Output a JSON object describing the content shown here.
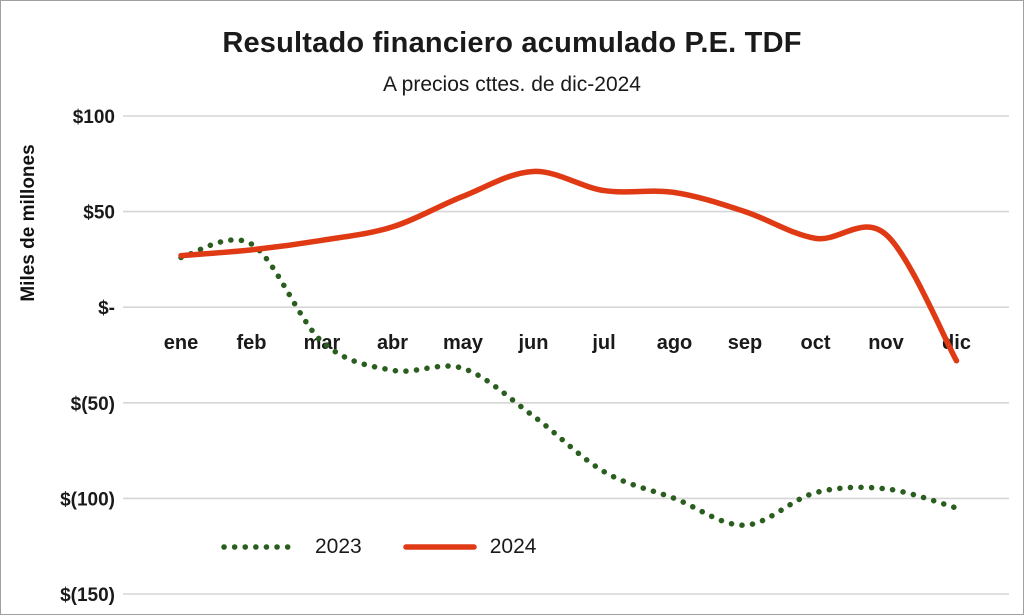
{
  "title": "Resultado financiero acumulado P.E. TDF",
  "subtitle": "A precios cttes. de dic-2024",
  "y_axis_label": "Miles de millones",
  "legend": {
    "series_2023_label": "2023",
    "series_2024_label": "2024"
  },
  "colors": {
    "series_2023": "#2a5e1e",
    "series_2024": "#e03a15",
    "gridline": "#d6d6d6",
    "text": "#1a1a1a"
  },
  "chart_data": {
    "type": "line",
    "title": "Resultado financiero acumulado P.E. TDF",
    "subtitle": "A precios cttes. de dic-2024",
    "ylabel": "Miles de millones",
    "xlabel": "",
    "grid": true,
    "legend_position": "bottom-left",
    "ylim": [
      -150,
      100
    ],
    "categories": [
      "ene",
      "feb",
      "mar",
      "abr",
      "may",
      "jun",
      "jul",
      "ago",
      "sep",
      "oct",
      "nov",
      "dic"
    ],
    "y_ticks": [
      {
        "value": 100,
        "label": "$100"
      },
      {
        "value": 50,
        "label": "$50"
      },
      {
        "value": 0,
        "label": "$-"
      },
      {
        "value": -50,
        "label": "$(50)"
      },
      {
        "value": -100,
        "label": "$(100)"
      },
      {
        "value": -150,
        "label": "$(150)"
      }
    ],
    "series": [
      {
        "name": "2023",
        "style": "dotted",
        "color": "#2a5e1e",
        "values": [
          26,
          33,
          -18,
          -33,
          -32,
          -57,
          -86,
          -100,
          -114,
          -97,
          -95,
          -105
        ]
      },
      {
        "name": "2024",
        "style": "solid",
        "color": "#e03a15",
        "values": [
          27,
          30,
          35,
          42,
          58,
          71,
          61,
          60,
          50,
          36,
          38,
          -28
        ]
      }
    ]
  }
}
